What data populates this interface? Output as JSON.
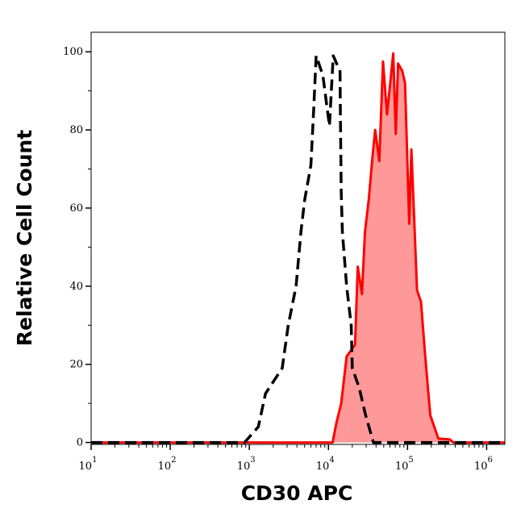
{
  "chart_data": {
    "type": "area",
    "title": "",
    "xlabel": "CD30 APC",
    "ylabel": "Relative Cell Count",
    "x_scale": "log",
    "xlim": [
      10,
      1700000
    ],
    "ylim": [
      -0.5,
      105
    ],
    "x_ticks": [
      {
        "base": "10",
        "exp": "1",
        "value": 10
      },
      {
        "base": "10",
        "exp": "2",
        "value": 100
      },
      {
        "base": "10",
        "exp": "3",
        "value": 1000
      },
      {
        "base": "10",
        "exp": "4",
        "value": 10000
      },
      {
        "base": "10",
        "exp": "5",
        "value": 100000
      },
      {
        "base": "10",
        "exp": "6",
        "value": 1000000
      }
    ],
    "y_ticks": [
      "0",
      "20",
      "40",
      "60",
      "80",
      "100"
    ],
    "grid": false,
    "series": [
      {
        "style": "dashed-line",
        "color": "#000000",
        "x": [
          10,
          870,
          1300,
          1600,
          2600,
          3100,
          3900,
          4500,
          5000,
          6000,
          6500,
          7000,
          8500,
          10300,
          11500,
          14000,
          14200,
          14500,
          15000,
          17000,
          19400,
          20000,
          24500,
          29500,
          37000,
          1700000
        ],
        "y": [
          0,
          0,
          4,
          12.5,
          19,
          30,
          40,
          54,
          62,
          71,
          85,
          99,
          94,
          81,
          99,
          95,
          81,
          64,
          54,
          40,
          30,
          19,
          14,
          7,
          0,
          0
        ]
      },
      {
        "style": "filled",
        "color": "#ff0000",
        "fill": "#ff9999",
        "x": [
          10,
          11300,
          12600,
          14500,
          17000,
          21700,
          23500,
          26500,
          29000,
          32500,
          36000,
          39000,
          44000,
          49000,
          55000,
          66000,
          71000,
          76000,
          86000,
          93000,
          105000,
          112000,
          132000,
          148000,
          166000,
          194000,
          245000,
          340000,
          380000,
          1700000
        ],
        "y": [
          0,
          0,
          5,
          10,
          22,
          25,
          45,
          38,
          54,
          62.5,
          73,
          80,
          72,
          97.5,
          84,
          99.6,
          79,
          97,
          95,
          92,
          56,
          75,
          39,
          36,
          23,
          7,
          1,
          0.8,
          0,
          0
        ]
      }
    ]
  }
}
